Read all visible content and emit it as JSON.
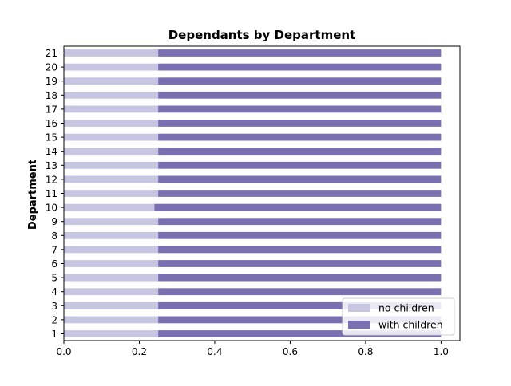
{
  "chart_data": {
    "type": "bar",
    "orientation": "horizontal",
    "stacked": true,
    "normalized": true,
    "title": "Dependants by Department",
    "xlabel": "",
    "ylabel": "Department",
    "xlim": [
      0,
      1.05
    ],
    "xticks": [
      "0.0",
      "0.2",
      "0.4",
      "0.6",
      "0.8",
      "1.0"
    ],
    "categories": [
      "1",
      "2",
      "3",
      "4",
      "5",
      "6",
      "7",
      "8",
      "9",
      "10",
      "11",
      "12",
      "13",
      "14",
      "15",
      "16",
      "17",
      "18",
      "19",
      "20",
      "21"
    ],
    "series": [
      {
        "name": "no children",
        "color": "#c6c6e2",
        "values": [
          0.25,
          0.25,
          0.25,
          0.25,
          0.25,
          0.25,
          0.25,
          0.25,
          0.25,
          0.24,
          0.25,
          0.25,
          0.25,
          0.25,
          0.25,
          0.25,
          0.25,
          0.25,
          0.25,
          0.25,
          0.25
        ]
      },
      {
        "name": "with children",
        "color": "#7a6fb0",
        "values": [
          0.75,
          0.75,
          0.75,
          0.75,
          0.75,
          0.75,
          0.75,
          0.75,
          0.75,
          0.76,
          0.75,
          0.75,
          0.75,
          0.75,
          0.75,
          0.75,
          0.75,
          0.75,
          0.75,
          0.75,
          0.75
        ]
      }
    ],
    "grid": false,
    "legend_position": "lower-right"
  }
}
